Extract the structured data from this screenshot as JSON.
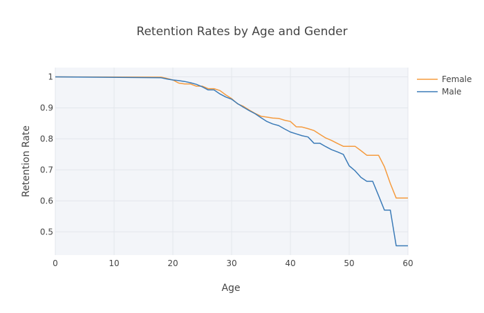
{
  "chart_data": {
    "type": "line",
    "title": "Retention Rates by Age and Gender",
    "xlabel": "Age",
    "ylabel": "Retention Rate",
    "xlim": [
      0,
      60
    ],
    "ylim": [
      0.425,
      1.03
    ],
    "x_ticks": [
      0,
      10,
      20,
      30,
      40,
      50,
      60
    ],
    "y_ticks": [
      0.5,
      0.6,
      0.7,
      0.8,
      0.9,
      1
    ],
    "y_tick_labels": [
      "0.5",
      "0.6",
      "0.7",
      "0.8",
      "0.9",
      "1"
    ],
    "grid": true,
    "legend_position": "top-right",
    "series": [
      {
        "name": "Female",
        "color": "#f59a3c",
        "points": [
          [
            0,
            1
          ],
          [
            18,
            0.999
          ],
          [
            19,
            0.995
          ],
          [
            20,
            0.99
          ],
          [
            21,
            0.98
          ],
          [
            22,
            0.977
          ],
          [
            23,
            0.977
          ],
          [
            24,
            0.97
          ],
          [
            25,
            0.97
          ],
          [
            26,
            0.962
          ],
          [
            27,
            0.962
          ],
          [
            28,
            0.956
          ],
          [
            29,
            0.942
          ],
          [
            30,
            0.93
          ],
          [
            31,
            0.913
          ],
          [
            32,
            0.905
          ],
          [
            33,
            0.893
          ],
          [
            34,
            0.882
          ],
          [
            35,
            0.873
          ],
          [
            36,
            0.87
          ],
          [
            37,
            0.867
          ],
          [
            38,
            0.866
          ],
          [
            39,
            0.86
          ],
          [
            40,
            0.856
          ],
          [
            41,
            0.839
          ],
          [
            42,
            0.838
          ],
          [
            43,
            0.833
          ],
          [
            44,
            0.827
          ],
          [
            45,
            0.815
          ],
          [
            46,
            0.803
          ],
          [
            47,
            0.795
          ],
          [
            48,
            0.785
          ],
          [
            49,
            0.776
          ],
          [
            50,
            0.776
          ],
          [
            51,
            0.776
          ],
          [
            52,
            0.762
          ],
          [
            53,
            0.747
          ],
          [
            54,
            0.747
          ],
          [
            55,
            0.747
          ],
          [
            56,
            0.71
          ],
          [
            57,
            0.656
          ],
          [
            58,
            0.609
          ],
          [
            59,
            0.609
          ],
          [
            60,
            0.609
          ]
        ]
      },
      {
        "name": "Male",
        "color": "#3a7ab7",
        "points": [
          [
            0,
            1
          ],
          [
            18,
            0.997
          ],
          [
            19,
            0.993
          ],
          [
            20,
            0.99
          ],
          [
            21,
            0.988
          ],
          [
            22,
            0.985
          ],
          [
            23,
            0.981
          ],
          [
            24,
            0.976
          ],
          [
            25,
            0.968
          ],
          [
            26,
            0.958
          ],
          [
            27,
            0.958
          ],
          [
            28,
            0.945
          ],
          [
            29,
            0.935
          ],
          [
            30,
            0.928
          ],
          [
            31,
            0.914
          ],
          [
            32,
            0.902
          ],
          [
            33,
            0.891
          ],
          [
            34,
            0.881
          ],
          [
            35,
            0.868
          ],
          [
            36,
            0.856
          ],
          [
            37,
            0.848
          ],
          [
            38,
            0.843
          ],
          [
            39,
            0.832
          ],
          [
            40,
            0.822
          ],
          [
            41,
            0.816
          ],
          [
            42,
            0.81
          ],
          [
            43,
            0.806
          ],
          [
            44,
            0.786
          ],
          [
            45,
            0.786
          ],
          [
            46,
            0.775
          ],
          [
            47,
            0.765
          ],
          [
            48,
            0.758
          ],
          [
            49,
            0.75
          ],
          [
            50,
            0.713
          ],
          [
            51,
            0.697
          ],
          [
            52,
            0.676
          ],
          [
            53,
            0.663
          ],
          [
            54,
            0.663
          ],
          [
            55,
            0.617
          ],
          [
            56,
            0.57
          ],
          [
            57,
            0.57
          ],
          [
            58,
            0.455
          ],
          [
            59,
            0.455
          ],
          [
            60,
            0.455
          ]
        ]
      }
    ]
  }
}
